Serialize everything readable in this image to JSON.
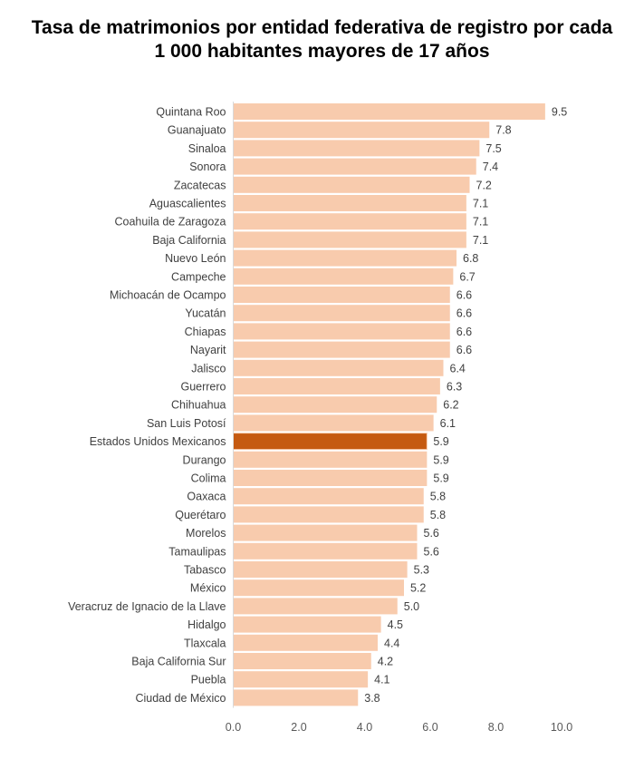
{
  "chart_data": {
    "type": "bar",
    "orientation": "horizontal",
    "title": [
      "Tasa de matrimonios por entidad federativa de registro por cada",
      "1 000 habitantes mayores de 17 años"
    ],
    "xlabel": "",
    "ylabel": "",
    "xlim": [
      0,
      10
    ],
    "xticks": [
      0,
      2,
      4,
      6,
      8,
      10
    ],
    "xtick_labels": [
      "0.0",
      "2.0",
      "4.0",
      "6.0",
      "8.0",
      "10.0"
    ],
    "grid": false,
    "legend": null,
    "colors": {
      "default": "#F8CBAD",
      "highlight": "#C55A11"
    },
    "highlight_category": "Estados Unidos Mexicanos",
    "categories": [
      "Quintana Roo",
      "Guanajuato",
      "Sinaloa",
      "Sonora",
      "Zacatecas",
      "Aguascalientes",
      "Coahuila de Zaragoza",
      "Baja California",
      "Nuevo León",
      "Campeche",
      "Michoacán de Ocampo",
      "Yucatán",
      "Chiapas",
      "Nayarit",
      "Jalisco",
      "Guerrero",
      "Chihuahua",
      "San Luis Potosí",
      "Estados Unidos Mexicanos",
      "Durango",
      "Colima",
      "Oaxaca",
      "Querétaro",
      "Morelos",
      "Tamaulipas",
      "Tabasco",
      "México",
      "Veracruz de Ignacio de la Llave",
      "Hidalgo",
      "Tlaxcala",
      "Baja California Sur",
      "Puebla",
      "Ciudad de México"
    ],
    "values": [
      9.5,
      7.8,
      7.5,
      7.4,
      7.2,
      7.1,
      7.1,
      7.1,
      6.8,
      6.7,
      6.6,
      6.6,
      6.6,
      6.6,
      6.4,
      6.3,
      6.2,
      6.1,
      5.9,
      5.9,
      5.9,
      5.8,
      5.8,
      5.6,
      5.6,
      5.3,
      5.2,
      5.0,
      4.5,
      4.4,
      4.2,
      4.1,
      3.8
    ],
    "value_labels": [
      "9.5",
      "7.8",
      "7.5",
      "7.4",
      "7.2",
      "7.1",
      "7.1",
      "7.1",
      "6.8",
      "6.7",
      "6.6",
      "6.6",
      "6.6",
      "6.6",
      "6.4",
      "6.3",
      "6.2",
      "6.1",
      "5.9",
      "5.9",
      "5.9",
      "5.8",
      "5.8",
      "5.6",
      "5.6",
      "5.3",
      "5.2",
      "5.0",
      "4.5",
      "4.4",
      "4.2",
      "4.1",
      "3.8"
    ]
  }
}
